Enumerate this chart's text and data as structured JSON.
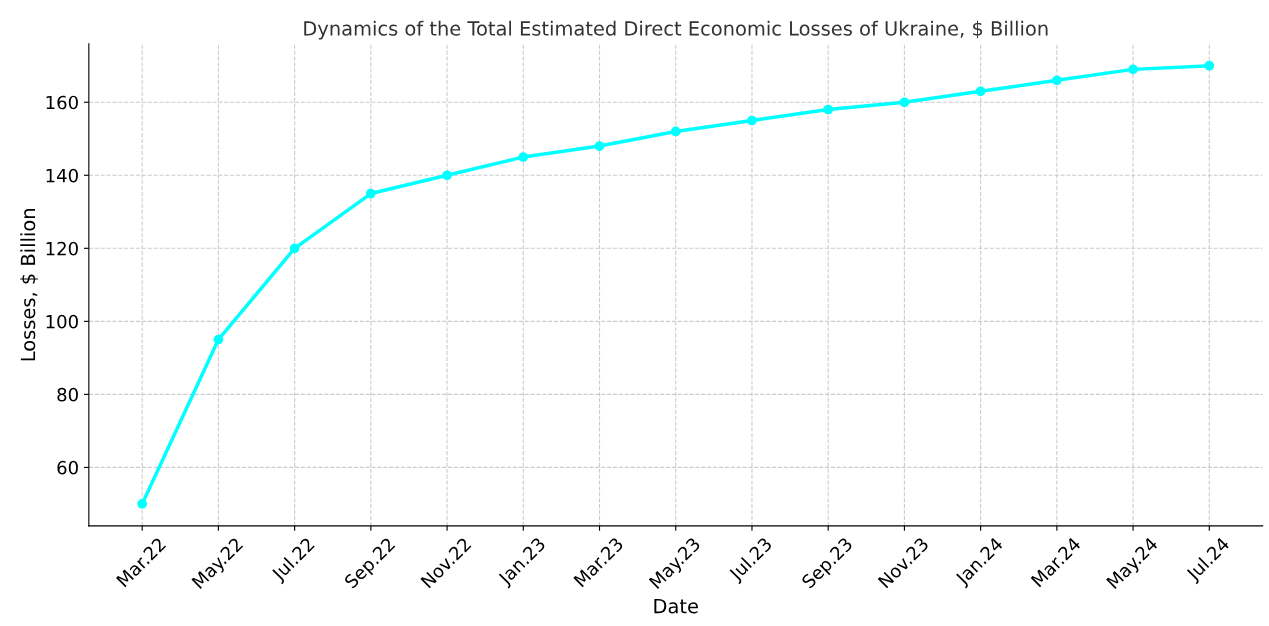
{
  "chart_data": {
    "type": "line",
    "title": "Dynamics of the Total Estimated Direct Economic Losses of Ukraine, $ Billion",
    "xlabel": "Date",
    "ylabel": "Losses, $ Billion",
    "categories": [
      "Mar.22",
      "May.22",
      "Jul.22",
      "Sep.22",
      "Nov.22",
      "Jan.23",
      "Mar.23",
      "May.23",
      "Jul.23",
      "Sep.23",
      "Nov.23",
      "Jan.24",
      "Mar.24",
      "May.24",
      "Jul.24"
    ],
    "series": [
      {
        "color": "#00ffff",
        "values": [
          50,
          95,
          120,
          135,
          140,
          145,
          148,
          152,
          155,
          158,
          160,
          163,
          166,
          169,
          170
        ]
      }
    ],
    "ylim": [
      44,
      176
    ],
    "yticks": [
      60,
      80,
      100,
      120,
      140,
      160
    ],
    "grid": true,
    "marker": "circle",
    "line_style": "solid"
  }
}
